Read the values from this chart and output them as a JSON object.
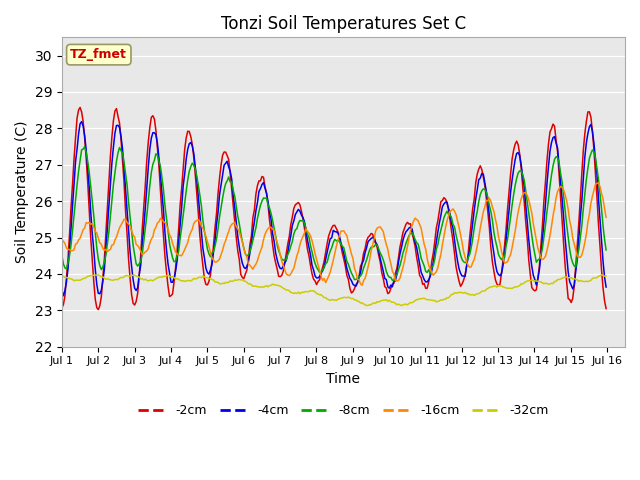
{
  "title": "Tonzi Soil Temperatures Set C",
  "xlabel": "Time",
  "ylabel": "Soil Temperature (C)",
  "ylim": [
    22.0,
    30.5
  ],
  "yticks": [
    22.0,
    23.0,
    24.0,
    25.0,
    26.0,
    27.0,
    28.0,
    29.0,
    30.0
  ],
  "xlim_days": 15.5,
  "annotation_text": "TZ_fmet",
  "annotation_color": "#cc0000",
  "annotation_bg": "#ffffcc",
  "annotation_border": "#999966",
  "bg_color": "#e8e8e8",
  "series_colors": {
    "-2cm": "#dd0000",
    "-4cm": "#0000ee",
    "-8cm": "#00aa00",
    "-16cm": "#ff8800",
    "-32cm": "#cccc00"
  },
  "legend_labels": [
    "-2cm",
    "-4cm",
    "-8cm",
    "-16cm",
    "-32cm"
  ]
}
